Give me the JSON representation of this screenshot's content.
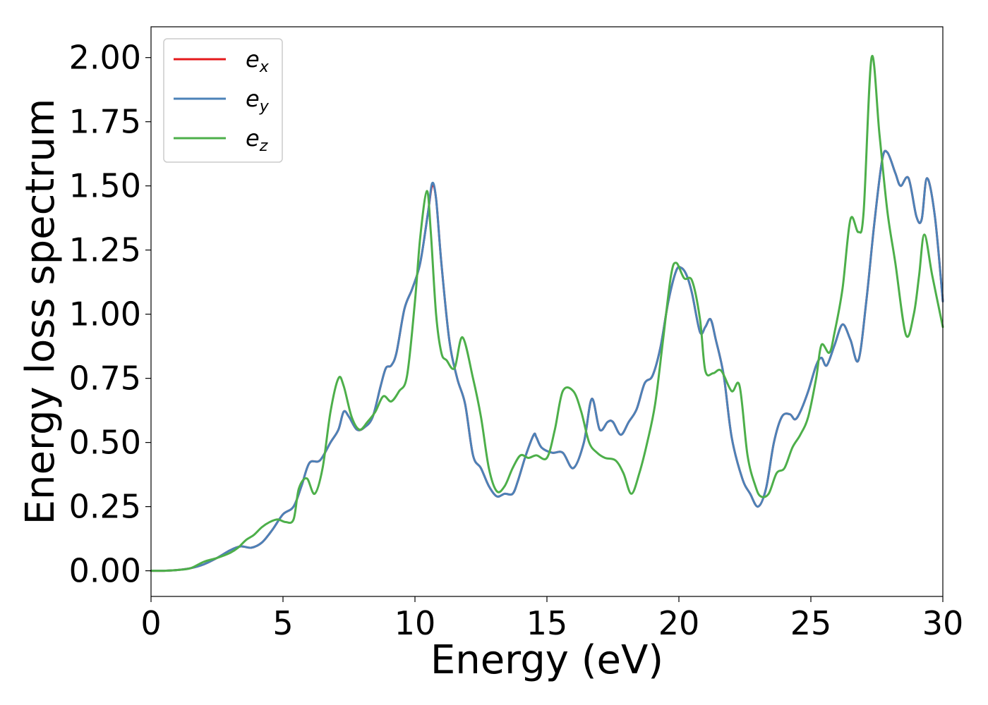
{
  "chart_data": {
    "type": "line",
    "xlabel": "Energy (eV)",
    "ylabel": "Energy loss spectrum",
    "xlim": [
      0,
      30
    ],
    "ylim": [
      -0.1,
      2.12
    ],
    "xticks": [
      "0",
      "5",
      "10",
      "15",
      "20",
      "25",
      "30"
    ],
    "xtick_values": [
      0,
      5,
      10,
      15,
      20,
      25,
      30
    ],
    "yticks": [
      "0.00",
      "0.25",
      "0.50",
      "0.75",
      "1.00",
      "1.25",
      "1.50",
      "1.75",
      "2.00"
    ],
    "ytick_values": [
      0,
      0.25,
      0.5,
      0.75,
      1.0,
      1.25,
      1.5,
      1.75,
      2.0
    ],
    "grid": false,
    "legend_position": "top-left",
    "series": [
      {
        "name": "e_x",
        "label_base": "e",
        "label_sub": "x",
        "color": "#e41a1c",
        "x": [
          0,
          0.5,
          1,
          1.5,
          2,
          2.5,
          3,
          3.4,
          3.8,
          4.2,
          4.6,
          5,
          5.4,
          5.7,
          6,
          6.4,
          6.8,
          7.1,
          7.3,
          7.5,
          7.8,
          8.1,
          8.4,
          8.7,
          8.9,
          9.1,
          9.3,
          9.6,
          9.9,
          10.2,
          10.5,
          10.65,
          10.8,
          11,
          11.3,
          11.6,
          11.9,
          12.2,
          12.5,
          12.8,
          13.1,
          13.4,
          13.7,
          13.9,
          14.2,
          14.5,
          14.6,
          14.8,
          15.2,
          15.6,
          16,
          16.4,
          16.7,
          17,
          17.3,
          17.5,
          17.8,
          18.1,
          18.4,
          18.7,
          19,
          19.3,
          19.6,
          19.9,
          20.1,
          20.3,
          20.5,
          20.8,
          21,
          21.2,
          21.4,
          21.7,
          22,
          22.4,
          22.7,
          23,
          23.3,
          23.6,
          23.9,
          24.2,
          24.4,
          24.6,
          24.9,
          25.2,
          25.4,
          25.6,
          25.9,
          26.2,
          26.5,
          26.8,
          27.1,
          27.4,
          27.7,
          27.9,
          28.2,
          28.4,
          28.7,
          29,
          29.2,
          29.4,
          29.7,
          30
        ],
        "values": [
          0,
          0,
          0.003,
          0.01,
          0.025,
          0.05,
          0.08,
          0.095,
          0.09,
          0.11,
          0.16,
          0.22,
          0.25,
          0.33,
          0.42,
          0.43,
          0.5,
          0.55,
          0.62,
          0.6,
          0.55,
          0.56,
          0.6,
          0.72,
          0.79,
          0.8,
          0.85,
          1.02,
          1.1,
          1.2,
          1.4,
          1.5,
          1.45,
          1.2,
          0.9,
          0.75,
          0.65,
          0.45,
          0.4,
          0.33,
          0.29,
          0.3,
          0.3,
          0.35,
          0.45,
          0.53,
          0.52,
          0.48,
          0.46,
          0.46,
          0.4,
          0.5,
          0.67,
          0.55,
          0.58,
          0.58,
          0.53,
          0.58,
          0.63,
          0.73,
          0.76,
          0.87,
          1.05,
          1.17,
          1.18,
          1.15,
          1.08,
          0.93,
          0.95,
          0.98,
          0.9,
          0.76,
          0.52,
          0.36,
          0.3,
          0.25,
          0.32,
          0.5,
          0.6,
          0.61,
          0.59,
          0.62,
          0.7,
          0.8,
          0.83,
          0.8,
          0.88,
          0.96,
          0.9,
          0.82,
          1.05,
          1.35,
          1.6,
          1.63,
          1.55,
          1.5,
          1.53,
          1.38,
          1.37,
          1.53,
          1.38,
          1.05
        ]
      },
      {
        "name": "e_y",
        "label_base": "e",
        "label_sub": "y",
        "color": "#4c82b8",
        "x": [
          0,
          0.5,
          1,
          1.5,
          2,
          2.5,
          3,
          3.4,
          3.8,
          4.2,
          4.6,
          5,
          5.4,
          5.7,
          6,
          6.4,
          6.8,
          7.1,
          7.3,
          7.5,
          7.8,
          8.1,
          8.4,
          8.7,
          8.9,
          9.1,
          9.3,
          9.6,
          9.9,
          10.2,
          10.5,
          10.65,
          10.8,
          11,
          11.3,
          11.6,
          11.9,
          12.2,
          12.5,
          12.8,
          13.1,
          13.4,
          13.7,
          13.9,
          14.2,
          14.5,
          14.6,
          14.8,
          15.2,
          15.6,
          16,
          16.4,
          16.7,
          17,
          17.3,
          17.5,
          17.8,
          18.1,
          18.4,
          18.7,
          19,
          19.3,
          19.6,
          19.9,
          20.1,
          20.3,
          20.5,
          20.8,
          21,
          21.2,
          21.4,
          21.7,
          22,
          22.4,
          22.7,
          23,
          23.3,
          23.6,
          23.9,
          24.2,
          24.4,
          24.6,
          24.9,
          25.2,
          25.4,
          25.6,
          25.9,
          26.2,
          26.5,
          26.8,
          27.1,
          27.4,
          27.7,
          27.9,
          28.2,
          28.4,
          28.7,
          29,
          29.2,
          29.4,
          29.7,
          30
        ],
        "values": [
          0,
          0,
          0.003,
          0.01,
          0.025,
          0.05,
          0.08,
          0.095,
          0.09,
          0.11,
          0.16,
          0.22,
          0.25,
          0.33,
          0.42,
          0.43,
          0.5,
          0.55,
          0.62,
          0.6,
          0.55,
          0.56,
          0.6,
          0.72,
          0.79,
          0.8,
          0.85,
          1.02,
          1.1,
          1.2,
          1.4,
          1.51,
          1.45,
          1.2,
          0.9,
          0.75,
          0.65,
          0.45,
          0.4,
          0.33,
          0.29,
          0.3,
          0.3,
          0.35,
          0.45,
          0.53,
          0.52,
          0.48,
          0.46,
          0.46,
          0.4,
          0.5,
          0.67,
          0.55,
          0.58,
          0.58,
          0.53,
          0.58,
          0.63,
          0.73,
          0.76,
          0.87,
          1.05,
          1.17,
          1.18,
          1.15,
          1.08,
          0.93,
          0.95,
          0.98,
          0.9,
          0.76,
          0.52,
          0.36,
          0.3,
          0.25,
          0.32,
          0.5,
          0.6,
          0.61,
          0.59,
          0.62,
          0.7,
          0.8,
          0.83,
          0.8,
          0.88,
          0.96,
          0.9,
          0.82,
          1.05,
          1.35,
          1.6,
          1.63,
          1.55,
          1.5,
          1.53,
          1.38,
          1.37,
          1.53,
          1.38,
          1.05
        ]
      },
      {
        "name": "e_z",
        "label_base": "e",
        "label_sub": "z",
        "color": "#4daf4a",
        "x": [
          0,
          0.5,
          1,
          1.5,
          2,
          2.5,
          3,
          3.3,
          3.6,
          3.9,
          4.2,
          4.5,
          4.8,
          5.1,
          5.4,
          5.6,
          5.9,
          6.2,
          6.5,
          6.8,
          7.1,
          7.3,
          7.6,
          7.9,
          8.2,
          8.5,
          8.8,
          9.1,
          9.4,
          9.7,
          10,
          10.2,
          10.45,
          10.6,
          10.8,
          11,
          11.2,
          11.5,
          11.8,
          12.2,
          12.5,
          12.8,
          13.1,
          13.4,
          13.7,
          14,
          14.3,
          14.6,
          15,
          15.3,
          15.6,
          16,
          16.3,
          16.6,
          16.9,
          17.2,
          17.6,
          17.9,
          18.2,
          18.5,
          18.8,
          19.1,
          19.4,
          19.7,
          19.9,
          20.2,
          20.5,
          20.8,
          21,
          21.3,
          21.6,
          22,
          22.3,
          22.6,
          22.9,
          23.1,
          23.4,
          23.7,
          24,
          24.3,
          24.6,
          24.9,
          25.2,
          25.4,
          25.7,
          25.9,
          26.2,
          26.5,
          26.8,
          27,
          27.3,
          27.6,
          27.9,
          28.2,
          28.6,
          28.9,
          29.1,
          29.3,
          29.6,
          30
        ],
        "values": [
          0,
          0,
          0.003,
          0.01,
          0.035,
          0.05,
          0.07,
          0.09,
          0.12,
          0.14,
          0.17,
          0.19,
          0.2,
          0.19,
          0.2,
          0.32,
          0.36,
          0.3,
          0.4,
          0.62,
          0.75,
          0.72,
          0.6,
          0.55,
          0.58,
          0.62,
          0.68,
          0.66,
          0.7,
          0.76,
          1.05,
          1.3,
          1.48,
          1.32,
          1.0,
          0.85,
          0.82,
          0.79,
          0.91,
          0.75,
          0.6,
          0.4,
          0.31,
          0.33,
          0.4,
          0.45,
          0.44,
          0.45,
          0.44,
          0.55,
          0.7,
          0.7,
          0.62,
          0.5,
          0.46,
          0.44,
          0.43,
          0.38,
          0.3,
          0.38,
          0.5,
          0.65,
          0.9,
          1.15,
          1.2,
          1.14,
          1.13,
          0.98,
          0.78,
          0.77,
          0.78,
          0.7,
          0.72,
          0.45,
          0.33,
          0.29,
          0.3,
          0.38,
          0.4,
          0.48,
          0.53,
          0.6,
          0.75,
          0.88,
          0.85,
          0.93,
          1.1,
          1.37,
          1.32,
          1.4,
          2.0,
          1.7,
          1.4,
          1.2,
          0.92,
          1.0,
          1.15,
          1.31,
          1.15,
          0.95
        ]
      }
    ]
  }
}
